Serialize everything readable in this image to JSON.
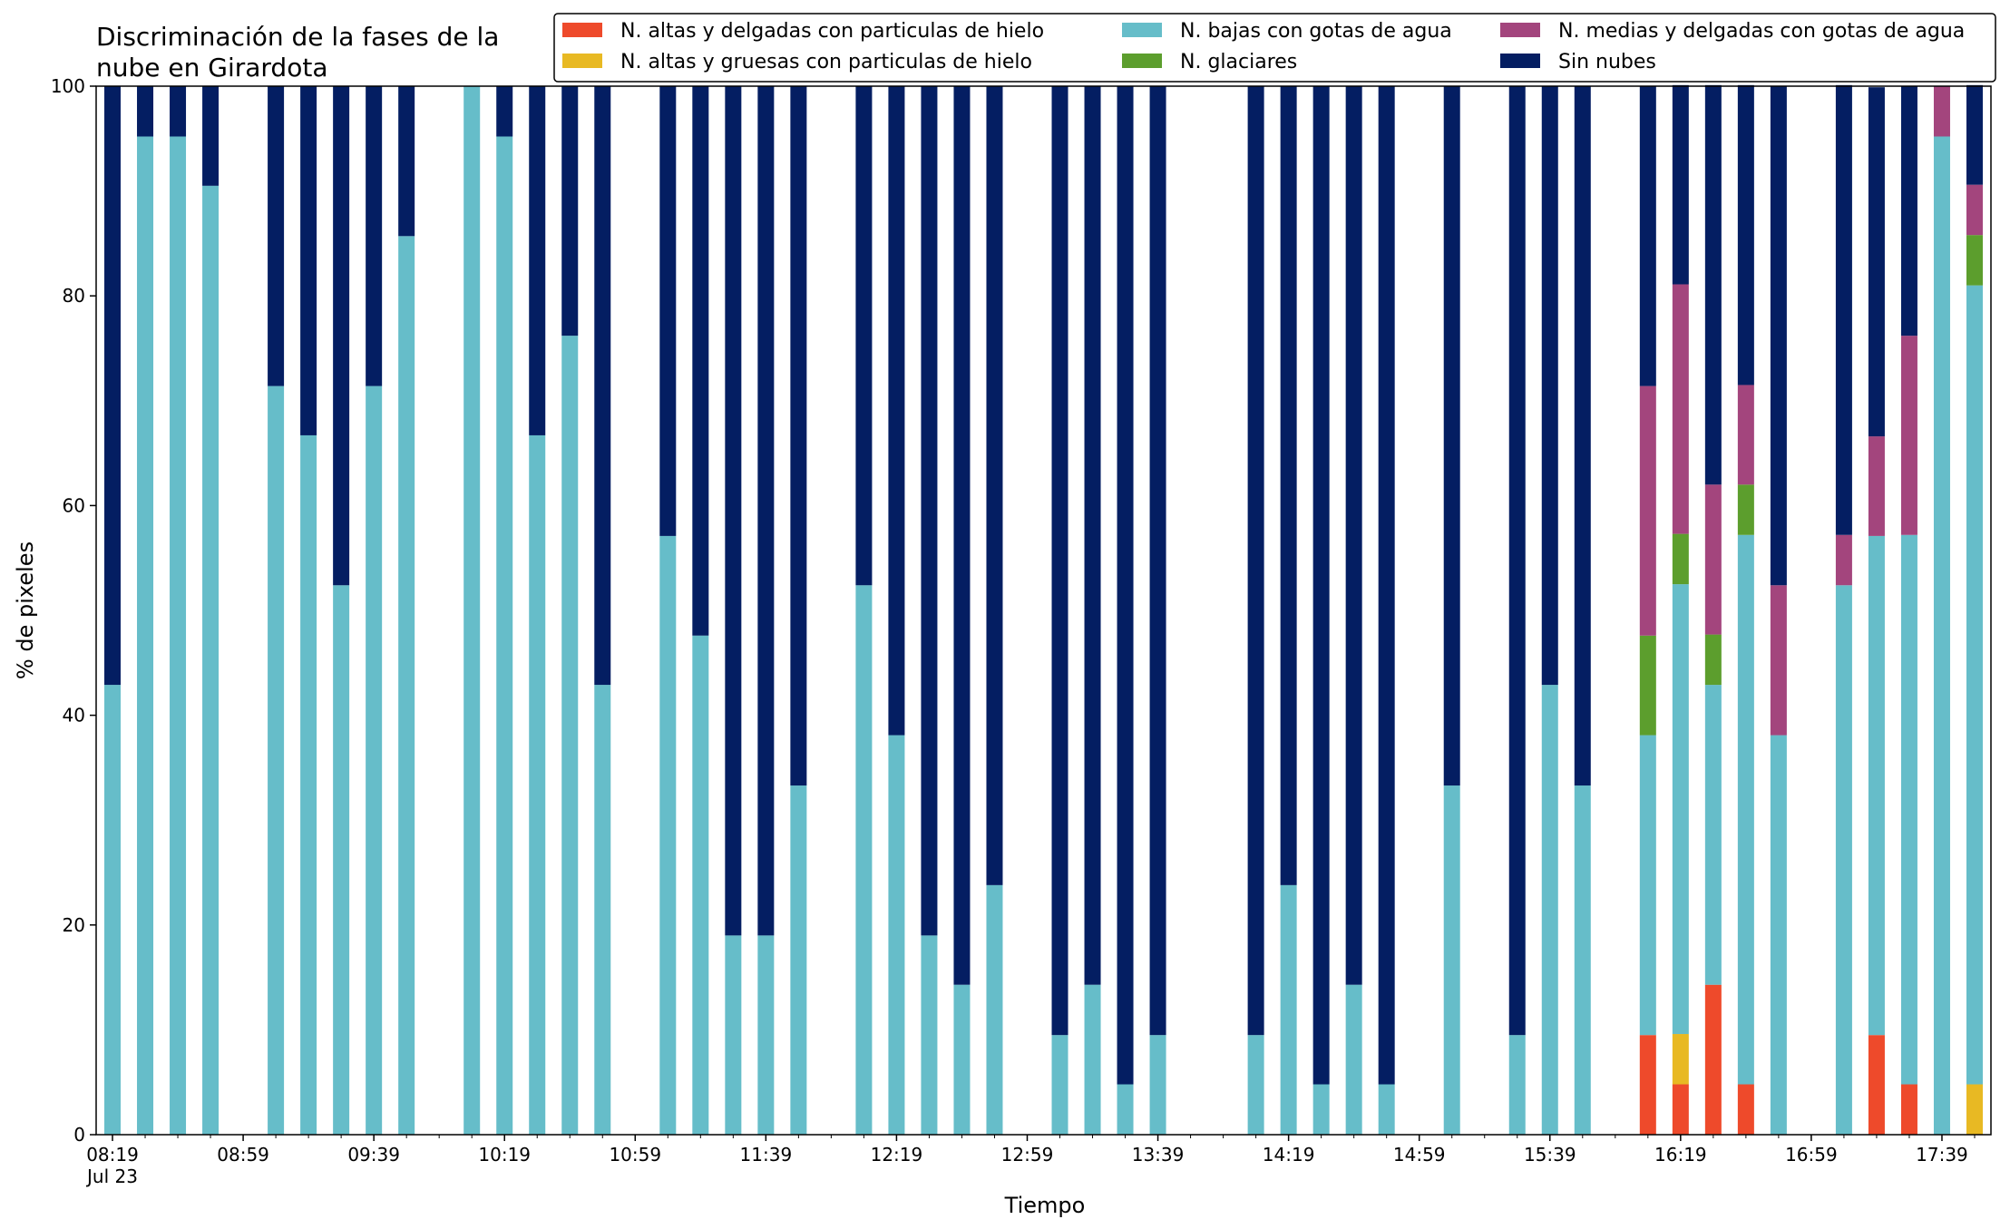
{
  "chart_data": {
    "type": "bar",
    "stacked": true,
    "title_lines": [
      "Discriminación de la fases de la",
      "nube en Girardota"
    ],
    "xlabel": "Tiempo",
    "ylabel": "% de pixeles",
    "ylim": [
      0,
      100
    ],
    "yticks": [
      0,
      20,
      40,
      60,
      80,
      100
    ],
    "grid": false,
    "legend_position": "top-right",
    "x_tick_labels": [
      {
        "time": "08:19",
        "label": "08:19",
        "sublabel": "Jul 23"
      },
      {
        "time": "08:59",
        "label": "08:59"
      },
      {
        "time": "09:39",
        "label": "09:39"
      },
      {
        "time": "10:19",
        "label": "10:19"
      },
      {
        "time": "10:59",
        "label": "10:59"
      },
      {
        "time": "11:39",
        "label": "11:39"
      },
      {
        "time": "12:19",
        "label": "12:19"
      },
      {
        "time": "12:59",
        "label": "12:59"
      },
      {
        "time": "13:39",
        "label": "13:39"
      },
      {
        "time": "14:19",
        "label": "14:19"
      },
      {
        "time": "14:59",
        "label": "14:59"
      },
      {
        "time": "15:39",
        "label": "15:39"
      },
      {
        "time": "16:19",
        "label": "16:19"
      },
      {
        "time": "16:59",
        "label": "16:59"
      },
      {
        "time": "17:39",
        "label": "17:39"
      }
    ],
    "x_time_range": [
      "08:14",
      "17:54"
    ],
    "series": [
      {
        "name": "N. altas y delgadas con particulas de hielo",
        "color": "#ee4a2b"
      },
      {
        "name": "N. altas y gruesas con particulas de hielo",
        "color": "#e8b923"
      },
      {
        "name": "N. bajas con gotas de agua",
        "color": "#66bdc9"
      },
      {
        "name": "N. glaciares",
        "color": "#5c9e2d"
      },
      {
        "name": "N. medias y delgadas con gotas de agua",
        "color": "#a3457d"
      },
      {
        "name": "Sin nubes",
        "color": "#041e62"
      }
    ],
    "bars": [
      {
        "time": "08:19",
        "values": [
          0,
          0,
          42.9,
          0,
          0,
          57.1
        ]
      },
      {
        "time": "08:29",
        "values": [
          0,
          0,
          95.2,
          0,
          0,
          4.8
        ]
      },
      {
        "time": "08:39",
        "values": [
          0,
          0,
          95.2,
          0,
          0,
          4.8
        ]
      },
      {
        "time": "08:49",
        "values": [
          0,
          0,
          90.5,
          0,
          0,
          9.5
        ]
      },
      {
        "time": "09:09",
        "values": [
          0,
          0,
          71.4,
          0,
          0,
          28.6
        ]
      },
      {
        "time": "09:19",
        "values": [
          0,
          0,
          66.7,
          0,
          0,
          33.3
        ]
      },
      {
        "time": "09:29",
        "values": [
          0,
          0,
          52.4,
          0,
          0,
          47.6
        ]
      },
      {
        "time": "09:39",
        "values": [
          0,
          0,
          71.4,
          0,
          0,
          28.6
        ]
      },
      {
        "time": "09:49",
        "values": [
          0,
          0,
          85.7,
          0,
          0,
          14.3
        ]
      },
      {
        "time": "10:09",
        "values": [
          0,
          0,
          100,
          0,
          0,
          0
        ]
      },
      {
        "time": "10:19",
        "values": [
          0,
          0,
          95.2,
          0,
          0,
          4.8
        ]
      },
      {
        "time": "10:29",
        "values": [
          0,
          0,
          66.7,
          0,
          0,
          33.3
        ]
      },
      {
        "time": "10:39",
        "values": [
          0,
          0,
          76.2,
          0,
          0,
          23.8
        ]
      },
      {
        "time": "10:49",
        "values": [
          0,
          0,
          42.9,
          0,
          0,
          57.1
        ]
      },
      {
        "time": "11:09",
        "values": [
          0,
          0,
          57.1,
          0,
          0,
          42.9
        ]
      },
      {
        "time": "11:19",
        "values": [
          0,
          0,
          47.6,
          0,
          0,
          52.4
        ]
      },
      {
        "time": "11:29",
        "values": [
          0,
          0,
          19.0,
          0,
          0,
          81.0
        ]
      },
      {
        "time": "11:39",
        "values": [
          0,
          0,
          19.0,
          0,
          0,
          81.0
        ]
      },
      {
        "time": "11:49",
        "values": [
          0,
          0,
          33.3,
          0,
          0,
          66.7
        ]
      },
      {
        "time": "12:09",
        "values": [
          0,
          0,
          52.4,
          0,
          0,
          47.6
        ]
      },
      {
        "time": "12:19",
        "values": [
          0,
          0,
          38.1,
          0,
          0,
          61.9
        ]
      },
      {
        "time": "12:29",
        "values": [
          0,
          0,
          19.0,
          0,
          0,
          81.0
        ]
      },
      {
        "time": "12:39",
        "values": [
          0,
          0,
          14.3,
          0,
          0,
          85.7
        ]
      },
      {
        "time": "12:49",
        "values": [
          0,
          0,
          23.8,
          0,
          0,
          76.2
        ]
      },
      {
        "time": "13:09",
        "values": [
          0,
          0,
          9.5,
          0,
          0,
          90.5
        ]
      },
      {
        "time": "13:19",
        "values": [
          0,
          0,
          14.3,
          0,
          0,
          85.7
        ]
      },
      {
        "time": "13:29",
        "values": [
          0,
          0,
          4.8,
          0,
          0,
          95.2
        ]
      },
      {
        "time": "13:39",
        "values": [
          0,
          0,
          9.5,
          0,
          0,
          90.5
        ]
      },
      {
        "time": "14:09",
        "values": [
          0,
          0,
          9.5,
          0,
          0,
          90.5
        ]
      },
      {
        "time": "14:19",
        "values": [
          0,
          0,
          23.8,
          0,
          0,
          76.2
        ]
      },
      {
        "time": "14:29",
        "values": [
          0,
          0,
          4.8,
          0,
          0,
          95.2
        ]
      },
      {
        "time": "14:39",
        "values": [
          0,
          0,
          14.3,
          0,
          0,
          85.7
        ]
      },
      {
        "time": "14:49",
        "values": [
          0,
          0,
          4.8,
          0,
          0,
          95.2
        ]
      },
      {
        "time": "15:09",
        "values": [
          0,
          0,
          33.3,
          0,
          0,
          66.7
        ]
      },
      {
        "time": "15:29",
        "values": [
          0,
          0,
          9.5,
          0,
          0,
          90.5
        ]
      },
      {
        "time": "15:39",
        "values": [
          0,
          0,
          42.9,
          0,
          0,
          57.1
        ]
      },
      {
        "time": "15:49",
        "values": [
          0,
          0,
          33.3,
          0,
          0,
          66.7
        ]
      },
      {
        "time": "16:09",
        "values": [
          9.5,
          0,
          28.6,
          9.5,
          23.8,
          28.6
        ]
      },
      {
        "time": "16:19",
        "values": [
          4.8,
          4.8,
          42.9,
          4.8,
          23.8,
          19.0
        ]
      },
      {
        "time": "16:29",
        "values": [
          14.3,
          0,
          28.6,
          4.8,
          14.3,
          38.1
        ]
      },
      {
        "time": "16:39",
        "values": [
          4.8,
          0,
          52.4,
          4.8,
          9.5,
          28.6
        ]
      },
      {
        "time": "16:49",
        "values": [
          0,
          0,
          38.1,
          0,
          14.3,
          47.6
        ]
      },
      {
        "time": "17:09",
        "values": [
          0,
          0,
          52.4,
          0,
          4.8,
          42.9
        ]
      },
      {
        "time": "17:19",
        "values": [
          9.5,
          0,
          47.6,
          0,
          9.5,
          33.3
        ]
      },
      {
        "time": "17:29",
        "values": [
          4.8,
          0,
          52.4,
          0,
          19.0,
          23.8
        ]
      },
      {
        "time": "17:39",
        "values": [
          0,
          0,
          95.2,
          0,
          4.8,
          0
        ]
      },
      {
        "time": "17:49",
        "values": [
          0,
          4.8,
          76.2,
          4.8,
          4.8,
          9.5
        ]
      }
    ]
  }
}
